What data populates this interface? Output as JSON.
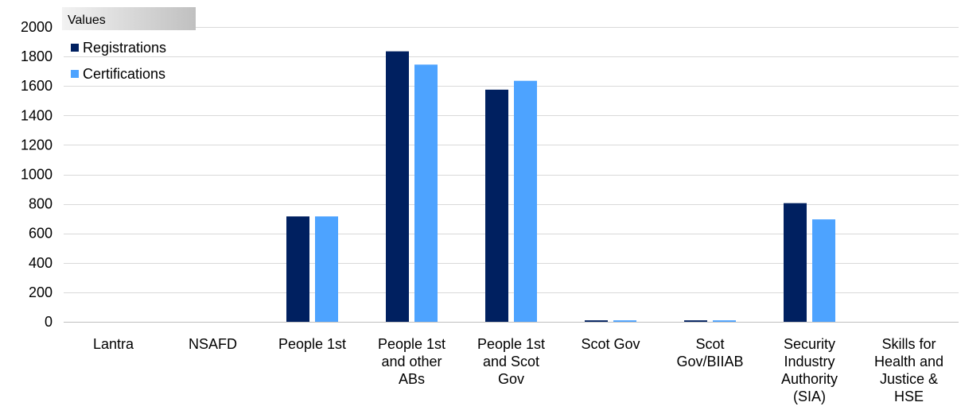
{
  "chart_data": {
    "type": "bar",
    "title": "",
    "xlabel": "",
    "ylabel": "",
    "ylim": [
      0,
      2000
    ],
    "yticks": [
      0,
      200,
      400,
      600,
      800,
      1000,
      1200,
      1400,
      1600,
      1800,
      2000
    ],
    "grid": true,
    "legend_position": "top-left",
    "legend_title": "Values",
    "categories": [
      "Lantra",
      "NSAFD",
      "People 1st",
      "People 1st and other ABs",
      "People 1st and Scot Gov",
      "Scot Gov",
      "Scot Gov/BIIAB",
      "Security Industry Authority (SIA)",
      "Skills for Health and Justice & HSE"
    ],
    "category_lines": [
      [
        "Lantra"
      ],
      [
        "NSAFD"
      ],
      [
        "People 1st"
      ],
      [
        "People 1st",
        "and other",
        "ABs"
      ],
      [
        "People 1st",
        "and Scot",
        "Gov"
      ],
      [
        "Scot Gov"
      ],
      [
        "Scot",
        "Gov/BIIAB"
      ],
      [
        "Security",
        "Industry",
        "Authority",
        "(SIA)"
      ],
      [
        "Skills for",
        "Health and",
        "Justice &",
        "HSE"
      ]
    ],
    "series": [
      {
        "name": "Registrations",
        "color": "#002060",
        "values": [
          0,
          0,
          715,
          1835,
          1575,
          10,
          10,
          805,
          0
        ]
      },
      {
        "name": "Certifications",
        "color": "#4DA3FF",
        "values": [
          0,
          0,
          715,
          1745,
          1635,
          10,
          10,
          695,
          0
        ]
      }
    ]
  },
  "colors": {
    "grid": "#D9D9D9",
    "axis": "#BFBFBF",
    "legend_title_bg_start": "#F2F2F2",
    "legend_title_bg_end": "#BFBFBF"
  }
}
